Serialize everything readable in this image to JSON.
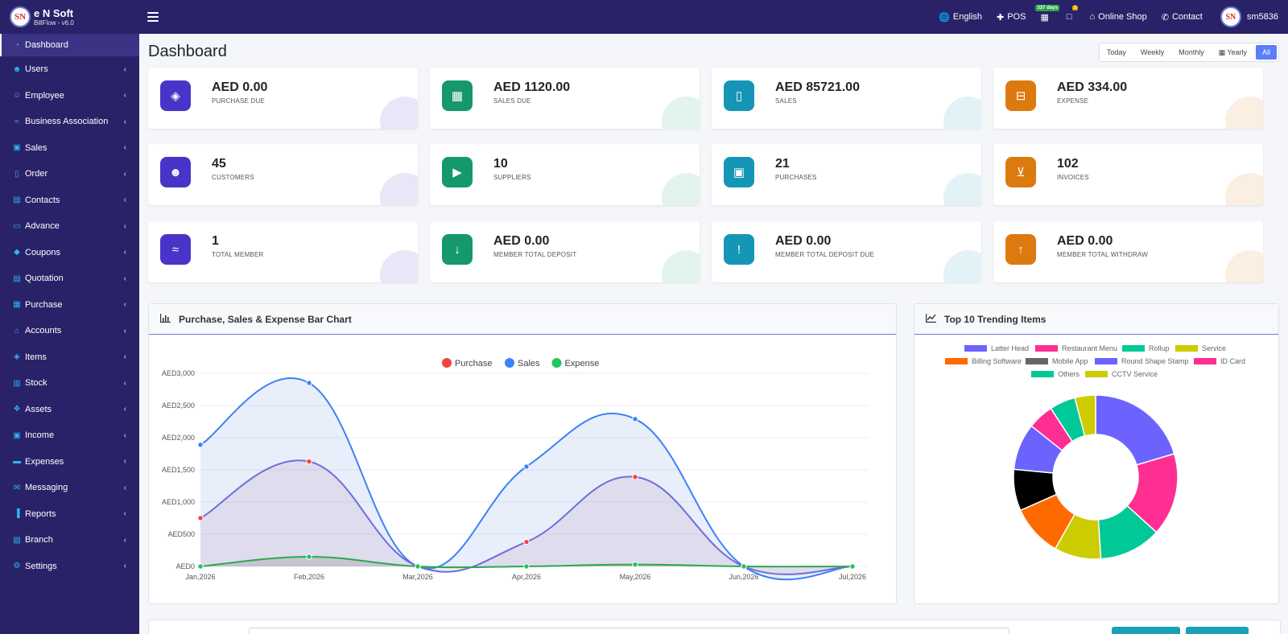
{
  "brand": {
    "logo_text": "SN",
    "name": "e N Soft",
    "version": "BillFlow - v6.0"
  },
  "topnav": {
    "language": "English",
    "pos": "POS",
    "days_badge": "337 days",
    "notif_badge": "5",
    "online_shop": "Online Shop",
    "contact": "Contact",
    "user": "sm5836",
    "user_avatar_text": "SN"
  },
  "sidebar": {
    "items": [
      {
        "label": "Dashboard",
        "icon": "dashboard-icon"
      },
      {
        "label": "Users",
        "icon": "users-icon"
      },
      {
        "label": "Employee",
        "icon": "employee-icon"
      },
      {
        "label": "Business Association",
        "icon": "handshake-icon"
      },
      {
        "label": "Sales",
        "icon": "shopping-bag-icon"
      },
      {
        "label": "Order",
        "icon": "file-icon"
      },
      {
        "label": "Contacts",
        "icon": "address-book-icon"
      },
      {
        "label": "Advance",
        "icon": "money-icon"
      },
      {
        "label": "Coupons",
        "icon": "tag-icon"
      },
      {
        "label": "Quotation",
        "icon": "quote-icon"
      },
      {
        "label": "Purchase",
        "icon": "basket-icon"
      },
      {
        "label": "Accounts",
        "icon": "bank-icon"
      },
      {
        "label": "Items",
        "icon": "cube-icon"
      },
      {
        "label": "Stock",
        "icon": "stock-icon"
      },
      {
        "label": "Assets",
        "icon": "cubes-icon"
      },
      {
        "label": "Income",
        "icon": "income-icon"
      },
      {
        "label": "Expenses",
        "icon": "credit-card-icon"
      },
      {
        "label": "Messaging",
        "icon": "envelope-icon"
      },
      {
        "label": "Reports",
        "icon": "bar-chart-icon"
      },
      {
        "label": "Branch",
        "icon": "branch-icon"
      },
      {
        "label": "Settings",
        "icon": "cogs-icon"
      }
    ]
  },
  "page": {
    "title": "Dashboard"
  },
  "periods": [
    "Today",
    "Weekly",
    "Monthly",
    "Yearly",
    "All"
  ],
  "active_period": "All",
  "cards": [
    {
      "value": "AED 0.00",
      "label": "PURCHASE DUE",
      "icon": "cube-icon",
      "color": "#4834c8"
    },
    {
      "value": "AED 1120.00",
      "label": "SALES DUE",
      "icon": "calendar-icon",
      "color": "#15996a"
    },
    {
      "value": "AED 85721.00",
      "label": "SALES",
      "icon": "file-icon",
      "color": "#1596b6"
    },
    {
      "value": "AED 334.00",
      "label": "EXPENSE",
      "icon": "minus-square-icon",
      "color": "#dc7a10"
    },
    {
      "value": "45",
      "label": "CUSTOMERS",
      "icon": "users-icon",
      "color": "#4834c8"
    },
    {
      "value": "10",
      "label": "SUPPLIERS",
      "icon": "truck-icon",
      "color": "#15996a"
    },
    {
      "value": "21",
      "label": "PURCHASES",
      "icon": "briefcase-icon",
      "color": "#1596b6"
    },
    {
      "value": "102",
      "label": "INVOICES",
      "icon": "cart-icon",
      "color": "#dc7a10"
    },
    {
      "value": "1",
      "label": "TOTAL MEMBER",
      "icon": "handshake-icon",
      "color": "#4834c8"
    },
    {
      "value": "AED 0.00",
      "label": "MEMBER TOTAL DEPOSIT",
      "icon": "arrow-down-icon",
      "color": "#15996a"
    },
    {
      "value": "AED 0.00",
      "label": "MEMBER TOTAL DEPOSIT DUE",
      "icon": "exclamation-icon",
      "color": "#1596b6"
    },
    {
      "value": "AED 0.00",
      "label": "MEMBER TOTAL WITHDRAW",
      "icon": "arrow-up-icon",
      "color": "#dc7a10"
    }
  ],
  "bar_panel": {
    "title": "Purchase, Sales & Expense Bar Chart"
  },
  "trend_panel": {
    "title": "Top 10 Trending Items"
  },
  "chart_data": [
    {
      "type": "line",
      "title": "Purchase, Sales & Expense Bar Chart",
      "categories": [
        "Jan,2026",
        "Feb,2026",
        "Mar,2026",
        "Apr,2026",
        "May,2026",
        "Jun,2026",
        "Jul,2026"
      ],
      "ylim": [
        0,
        3000
      ],
      "yticks": [
        "AED0",
        "AED500",
        "AED1,000",
        "AED1,500",
        "AED2,000",
        "AED2,500",
        "AED3,000"
      ],
      "legend": "top-center",
      "series": [
        {
          "name": "Purchase",
          "color": "#ef4444",
          "values": [
            750,
            1630,
            0,
            380,
            1390,
            0,
            0
          ]
        },
        {
          "name": "Sales",
          "color": "#3b82f6",
          "values": [
            1890,
            2850,
            0,
            1550,
            2290,
            0,
            0
          ]
        },
        {
          "name": "Expense",
          "color": "#22c55e",
          "values": [
            0,
            150,
            0,
            0,
            30,
            0,
            0
          ]
        }
      ]
    },
    {
      "type": "pie",
      "title": "Top 10 Trending Items",
      "legend": "top",
      "labels": [
        "Latter Head",
        "Restaurant Menu",
        "Rollup",
        "Service",
        "Billing Software",
        "Mobile App",
        "Round Shape Stamp",
        "ID Card",
        "Others",
        "CCTV Service"
      ],
      "colors": [
        "#6c63ff",
        "#ff2e93",
        "#00c896",
        "#cccc00",
        "#ff6a00",
        "#666666",
        "#6c63ff",
        "#ff2e93",
        "#00c896",
        "#cccc00"
      ],
      "slice_colors": [
        "#6c63ff",
        "#ff2e93",
        "#00c896",
        "#cccc00",
        "#ff6a00",
        "#000000",
        "#6c63ff",
        "#ff2e93",
        "#00c896",
        "#cccc00"
      ],
      "values": [
        20,
        16,
        12,
        9,
        10,
        8,
        9,
        5,
        5,
        4
      ]
    }
  ]
}
